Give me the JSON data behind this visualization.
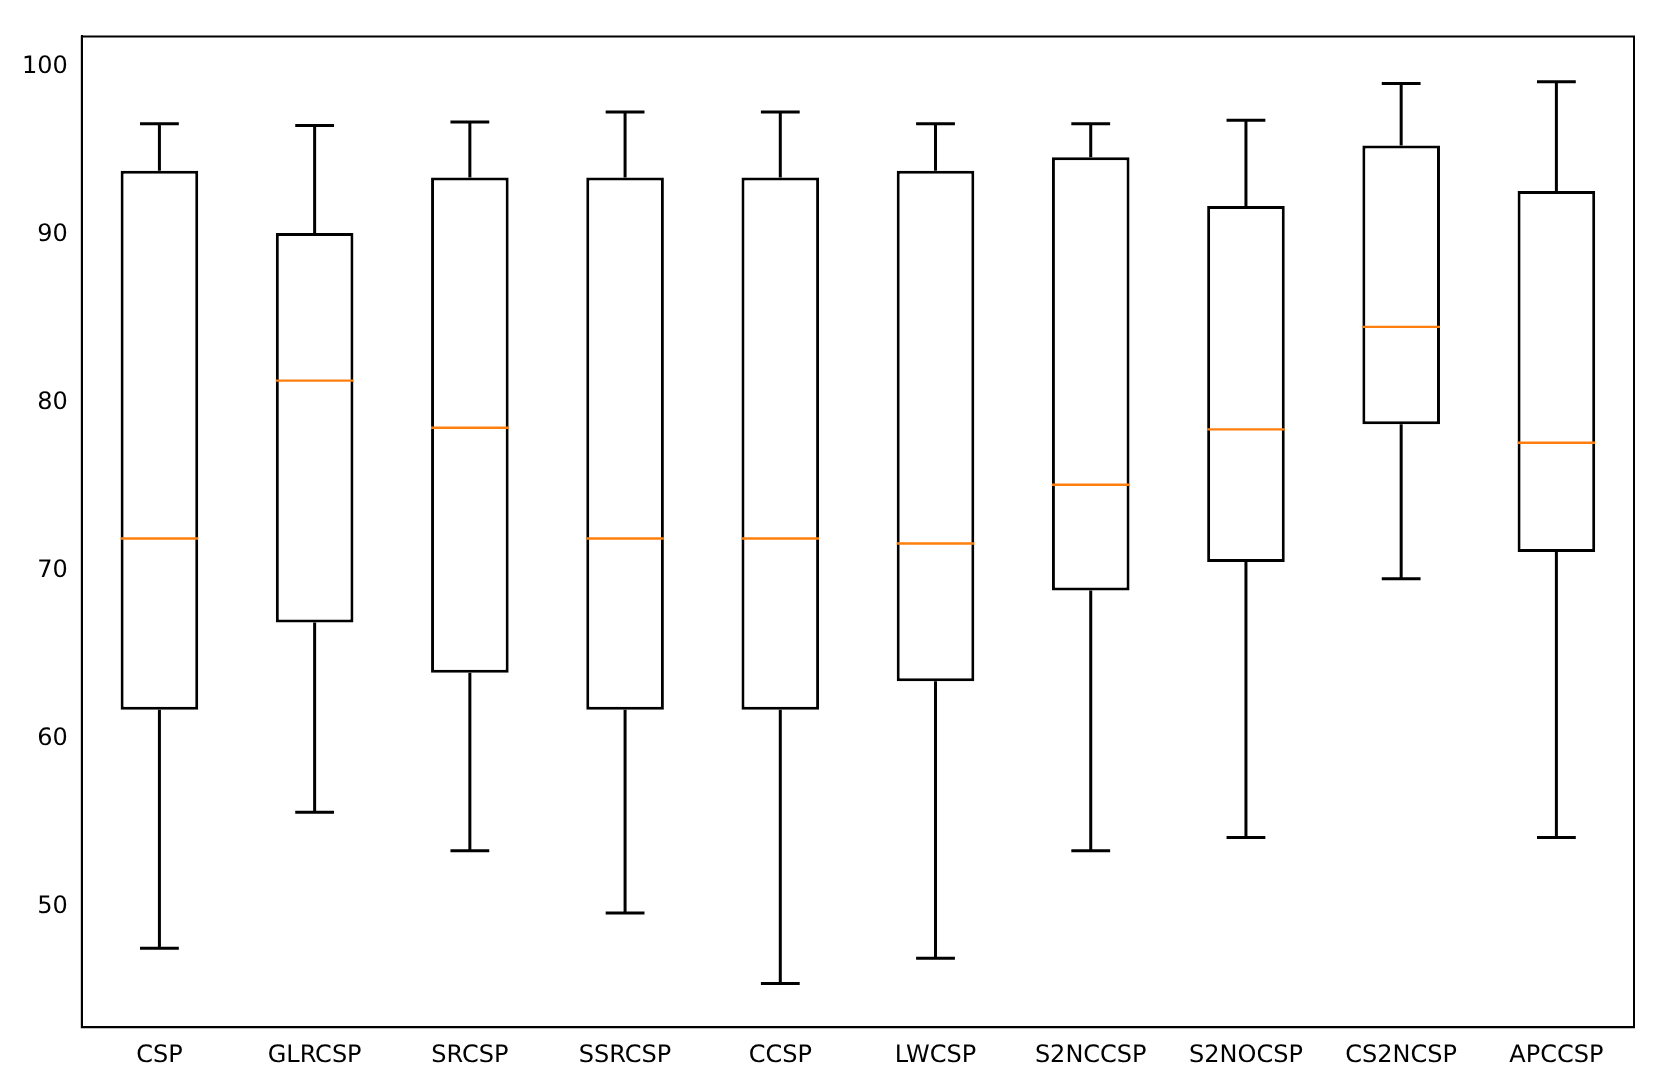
{
  "chart_data": {
    "type": "box",
    "categories": [
      "CSP",
      "GLRCSP",
      "SRCSP",
      "SSRCSP",
      "CCSP",
      "LWCSP",
      "S2NCCSP",
      "S2NOCSP",
      "CS2NCSP",
      "APCCSP"
    ],
    "color": "#000000",
    "boxes": [
      {
        "low": 47.5,
        "q1": 61.7,
        "median": 71.9,
        "q3": 93.8,
        "high": 96.6
      },
      {
        "low": 55.6,
        "q1": 66.9,
        "median": 81.3,
        "q3": 90.1,
        "high": 96.5
      },
      {
        "low": 53.3,
        "q1": 63.9,
        "median": 78.5,
        "q3": 93.4,
        "high": 96.7
      },
      {
        "low": 49.6,
        "q1": 61.7,
        "median": 71.9,
        "q3": 93.4,
        "high": 97.3
      },
      {
        "low": 45.4,
        "q1": 61.7,
        "median": 71.9,
        "q3": 93.4,
        "high": 97.3
      },
      {
        "low": 46.9,
        "q1": 63.4,
        "median": 71.6,
        "q3": 93.8,
        "high": 96.6
      },
      {
        "low": 53.3,
        "q1": 68.8,
        "median": 75.1,
        "q3": 94.6,
        "high": 96.6
      },
      {
        "low": 54.1,
        "q1": 70.5,
        "median": 78.4,
        "q3": 91.7,
        "high": 96.8
      },
      {
        "low": 69.5,
        "q1": 78.7,
        "median": 84.5,
        "q3": 95.3,
        "high": 99.0
      },
      {
        "low": 54.1,
        "q1": 71.1,
        "median": 77.6,
        "q3": 92.6,
        "high": 99.1
      }
    ],
    "ylim": [
      42.8,
      101.8
    ],
    "yticks": [
      50,
      60,
      70,
      80,
      90,
      100
    ]
  }
}
